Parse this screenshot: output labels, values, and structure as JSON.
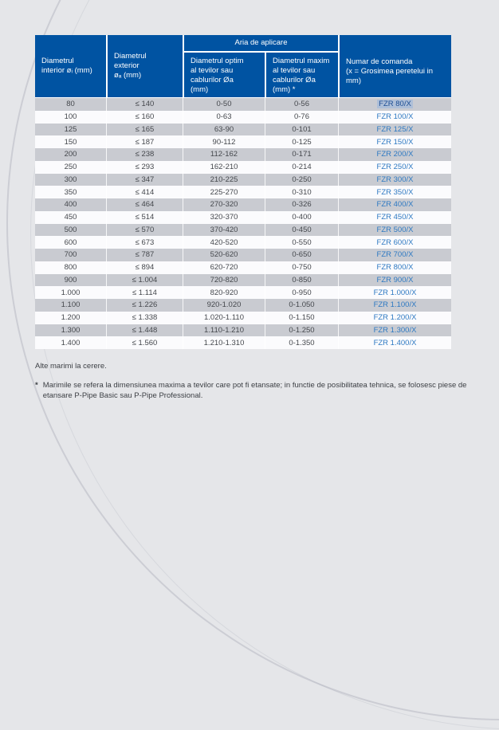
{
  "colors": {
    "header_bg": "#0053a2",
    "row_odd": "#c9cbd1",
    "row_even": "#fbfbfd",
    "page_bg": "#e5e6e9",
    "order_link": "#2e79c2",
    "selection_highlight": "#aebfd8"
  },
  "table": {
    "header": {
      "col1": "Diametrul\ninterior øᵢ (mm)",
      "col2": "Diametrul\nexterior\nøₐ (mm)",
      "aria_group": "Aria de aplicare",
      "col3": "Diametrul optim\nal tevilor sau\ncablurilor Øa\n(mm)",
      "col4": "Diametrul maxim\nal tevilor sau\ncablurilor Øa\n(mm) *",
      "col5": "Numar de comanda\n(x = Grosimea peretelui in\nmm)"
    },
    "selected_row_index": 0,
    "selected_order_number": "FZR 80/X",
    "rows": [
      [
        "80",
        "≤ 140",
        "0-50",
        "0-56",
        "FZR 80/X"
      ],
      [
        "100",
        "≤ 160",
        "0-63",
        "0-76",
        "FZR 100/X"
      ],
      [
        "125",
        "≤ 165",
        "63-90",
        "0-101",
        "FZR 125/X"
      ],
      [
        "150",
        "≤ 187",
        "90-112",
        "0-125",
        "FZR 150/X"
      ],
      [
        "200",
        "≤ 238",
        "112-162",
        "0-171",
        "FZR 200/X"
      ],
      [
        "250",
        "≤ 293",
        "162-210",
        "0-214",
        "FZR 250/X"
      ],
      [
        "300",
        "≤ 347",
        "210-225",
        "0-250",
        "FZR 300/X"
      ],
      [
        "350",
        "≤ 414",
        "225-270",
        "0-310",
        "FZR 350/X"
      ],
      [
        "400",
        "≤ 464",
        "270-320",
        "0-326",
        "FZR 400/X"
      ],
      [
        "450",
        "≤ 514",
        "320-370",
        "0-400",
        "FZR 450/X"
      ],
      [
        "500",
        "≤ 570",
        "370-420",
        "0-450",
        "FZR 500/X"
      ],
      [
        "600",
        "≤ 673",
        "420-520",
        "0-550",
        "FZR 600/X"
      ],
      [
        "700",
        "≤ 787",
        "520-620",
        "0-650",
        "FZR 700/X"
      ],
      [
        "800",
        "≤ 894",
        "620-720",
        "0-750",
        "FZR 800/X"
      ],
      [
        "900",
        "≤ 1.004",
        "720-820",
        "0-850",
        "FZR 900/X"
      ],
      [
        "1.000",
        "≤ 1.114",
        "820-920",
        "0-950",
        "FZR 1.000/X"
      ],
      [
        "1.100",
        "≤ 1.226",
        "920-1.020",
        "0-1.050",
        "FZR 1.100/X"
      ],
      [
        "1.200",
        "≤ 1.338",
        "1.020-1.110",
        "0-1.150",
        "FZR 1.200/X"
      ],
      [
        "1.300",
        "≤ 1.448",
        "1.110-1.210",
        "0-1.250",
        "FZR 1.300/X"
      ],
      [
        "1.400",
        "≤ 1.560",
        "1.210-1.310",
        "0-1.350",
        "FZR 1.400/X"
      ]
    ]
  },
  "footer": {
    "other_sizes": "Alte marimi la cerere.",
    "footnote_marker": "*",
    "footnote_text": "Marimile se refera la dimensiunea maxima a tevilor care pot fi etansate; in functie de posibilitatea tehnica, se folosesc piese de etansare P-Pipe Basic sau P-Pipe Professional."
  }
}
